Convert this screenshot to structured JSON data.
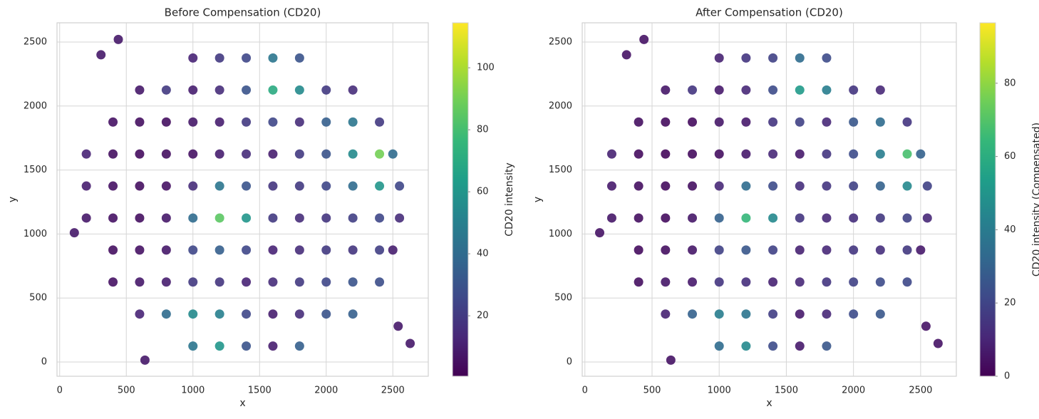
{
  "chart_data": [
    {
      "type": "scatter",
      "title": "Before Compensation (CD20)",
      "xlabel": "x",
      "ylabel": "y",
      "colorbar_label": "CD20 intensity",
      "cmap": "viridis",
      "grid": true,
      "xlim": [
        -20,
        2766
      ],
      "ylim": [
        -111,
        2650
      ],
      "xticks": [
        0,
        500,
        1000,
        1500,
        2000,
        2500
      ],
      "yticks": [
        0,
        500,
        1000,
        1500,
        2000,
        2500
      ],
      "clim": [
        0.5,
        114.5
      ],
      "cticks": [
        20,
        40,
        60,
        80,
        100
      ],
      "x": [
        1000,
        1200,
        1400,
        1600,
        1800,
        600,
        800,
        1000,
        1200,
        1400,
        1600,
        1800,
        2000,
        2200,
        400,
        600,
        800,
        1000,
        1200,
        1400,
        1600,
        1800,
        2000,
        2200,
        2400,
        400,
        600,
        800,
        1000,
        1200,
        1400,
        1600,
        1800,
        2000,
        2200,
        2400,
        2500,
        200,
        400,
        600,
        800,
        1000,
        1200,
        1400,
        1600,
        1800,
        2000,
        2200,
        2400,
        2550,
        200,
        400,
        600,
        800,
        1000,
        1200,
        1400,
        1600,
        1800,
        2000,
        2200,
        2400,
        2550,
        200,
        400,
        600,
        800,
        1000,
        1200,
        1400,
        1600,
        1800,
        2000,
        2200,
        2400,
        2500,
        400,
        600,
        800,
        1000,
        1200,
        1400,
        1600,
        1800,
        2000,
        2200,
        2400,
        600,
        800,
        1000,
        1200,
        1400,
        1600,
        1800,
        2000,
        2200,
        1000,
        1200,
        1400,
        1600,
        1800,
        440,
        310,
        640,
        2540,
        2630,
        110
      ],
      "y": [
        125,
        125,
        125,
        125,
        125,
        375,
        375,
        375,
        375,
        375,
        375,
        375,
        375,
        375,
        625,
        625,
        625,
        625,
        625,
        625,
        625,
        625,
        625,
        625,
        625,
        875,
        875,
        875,
        875,
        875,
        875,
        875,
        875,
        875,
        875,
        875,
        875,
        1125,
        1125,
        1125,
        1125,
        1125,
        1125,
        1125,
        1125,
        1125,
        1125,
        1125,
        1125,
        1125,
        1375,
        1375,
        1375,
        1375,
        1375,
        1375,
        1375,
        1375,
        1375,
        1375,
        1375,
        1375,
        1375,
        1625,
        1625,
        1625,
        1625,
        1625,
        1625,
        1625,
        1625,
        1625,
        1625,
        1625,
        1625,
        1625,
        1875,
        1875,
        1875,
        1875,
        1875,
        1875,
        1875,
        1875,
        1875,
        1875,
        1875,
        2125,
        2125,
        2125,
        2125,
        2125,
        2125,
        2125,
        2125,
        2125,
        2375,
        2375,
        2375,
        2375,
        2375,
        2520,
        2400,
        15,
        280,
        145,
        1010
      ],
      "values": [
        45,
        60,
        30,
        10,
        35,
        12,
        40,
        55,
        50,
        25,
        10,
        15,
        30,
        35,
        6,
        8,
        10,
        20,
        18,
        12,
        15,
        20,
        25,
        30,
        28,
        5,
        6,
        8,
        25,
        35,
        25,
        12,
        15,
        20,
        18,
        22,
        10,
        8,
        6,
        5,
        8,
        40,
        85,
        60,
        20,
        15,
        18,
        22,
        25,
        15,
        10,
        6,
        5,
        6,
        15,
        45,
        30,
        18,
        20,
        25,
        40,
        60,
        25,
        12,
        5,
        4,
        5,
        6,
        10,
        15,
        10,
        20,
        30,
        55,
        90,
        40,
        6,
        5,
        5,
        8,
        10,
        20,
        25,
        15,
        35,
        45,
        20,
        8,
        20,
        10,
        15,
        30,
        70,
        55,
        20,
        15,
        12,
        20,
        25,
        45,
        30,
        8,
        8,
        8,
        8,
        8,
        8
      ]
    },
    {
      "type": "scatter",
      "title": "After Compensation (CD20)",
      "xlabel": "x",
      "ylabel": "y",
      "colorbar_label": "CD20 intensity (Compensated)",
      "cmap": "viridis",
      "grid": true,
      "xlim": [
        -20,
        2766
      ],
      "ylim": [
        -111,
        2650
      ],
      "xticks": [
        0,
        500,
        1000,
        1500,
        2000,
        2500
      ],
      "yticks": [
        0,
        500,
        1000,
        1500,
        2000,
        2500
      ],
      "clim": [
        0,
        96.5
      ],
      "cticks": [
        0,
        20,
        40,
        60,
        80
      ],
      "x": [
        1000,
        1200,
        1400,
        1600,
        1800,
        600,
        800,
        1000,
        1200,
        1400,
        1600,
        1800,
        2000,
        2200,
        400,
        600,
        800,
        1000,
        1200,
        1400,
        1600,
        1800,
        2000,
        2200,
        2400,
        400,
        600,
        800,
        1000,
        1200,
        1400,
        1600,
        1800,
        2000,
        2200,
        2400,
        2500,
        200,
        400,
        600,
        800,
        1000,
        1200,
        1400,
        1600,
        1800,
        2000,
        2200,
        2400,
        2550,
        200,
        400,
        600,
        800,
        1000,
        1200,
        1400,
        1600,
        1800,
        2000,
        2200,
        2400,
        2550,
        200,
        400,
        600,
        800,
        1000,
        1200,
        1400,
        1600,
        1800,
        2000,
        2200,
        2400,
        2500,
        400,
        600,
        800,
        1000,
        1200,
        1400,
        1600,
        1800,
        2000,
        2200,
        2400,
        600,
        800,
        1000,
        1200,
        1400,
        1600,
        1800,
        2000,
        2200,
        1000,
        1200,
        1400,
        1600,
        1800,
        440,
        310,
        640,
        2540,
        2630,
        110
      ],
      "y": [
        125,
        125,
        125,
        125,
        125,
        375,
        375,
        375,
        375,
        375,
        375,
        375,
        375,
        375,
        625,
        625,
        625,
        625,
        625,
        625,
        625,
        625,
        625,
        625,
        625,
        875,
        875,
        875,
        875,
        875,
        875,
        875,
        875,
        875,
        875,
        875,
        875,
        1125,
        1125,
        1125,
        1125,
        1125,
        1125,
        1125,
        1125,
        1125,
        1125,
        1125,
        1125,
        1125,
        1375,
        1375,
        1375,
        1375,
        1375,
        1375,
        1375,
        1375,
        1375,
        1375,
        1375,
        1375,
        1375,
        1625,
        1625,
        1625,
        1625,
        1625,
        1625,
        1625,
        1625,
        1625,
        1625,
        1625,
        1625,
        1625,
        1875,
        1875,
        1875,
        1875,
        1875,
        1875,
        1875,
        1875,
        1875,
        1875,
        1875,
        2125,
        2125,
        2125,
        2125,
        2125,
        2125,
        2125,
        2125,
        2125,
        2375,
        2375,
        2375,
        2375,
        2375,
        2520,
        2400,
        15,
        280,
        145,
        1010
      ],
      "values": [
        34,
        45,
        22,
        7,
        26,
        9,
        30,
        41,
        37,
        18,
        7,
        11,
        22,
        26,
        4,
        6,
        7,
        15,
        13,
        9,
        11,
        15,
        19,
        22,
        21,
        3,
        4,
        6,
        19,
        26,
        19,
        9,
        11,
        15,
        13,
        16,
        7,
        6,
        4,
        3,
        6,
        30,
        64,
        45,
        15,
        11,
        13,
        16,
        19,
        11,
        7,
        4,
        3,
        4,
        11,
        34,
        22,
        13,
        15,
        19,
        30,
        45,
        19,
        9,
        3,
        2,
        3,
        4,
        7,
        11,
        7,
        15,
        22,
        41,
        68,
        30,
        4,
        3,
        3,
        6,
        7,
        15,
        19,
        11,
        26,
        34,
        15,
        6,
        15,
        7,
        11,
        22,
        52,
        41,
        15,
        11,
        9,
        15,
        19,
        34,
        22,
        5,
        5,
        5,
        5,
        5,
        5
      ]
    }
  ]
}
